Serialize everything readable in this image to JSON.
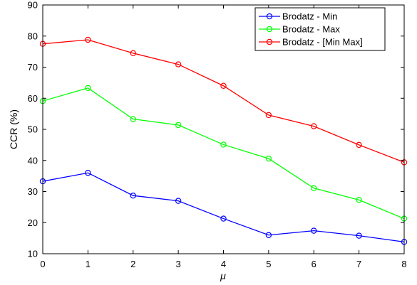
{
  "chart_data": {
    "type": "line",
    "title": "",
    "xlabel": "μ",
    "ylabel": "CCR (%)",
    "xlim": [
      0,
      8
    ],
    "ylim": [
      10,
      90
    ],
    "xticks": [
      0,
      1,
      2,
      3,
      4,
      5,
      6,
      7,
      8
    ],
    "yticks": [
      10,
      20,
      30,
      40,
      50,
      60,
      70,
      80,
      90
    ],
    "grid": false,
    "legend_position": "top-right",
    "x": [
      0,
      1,
      2,
      3,
      4,
      5,
      6,
      7,
      8
    ],
    "series": [
      {
        "name": "Brodatz - Min",
        "color": "#0000ff",
        "marker": "circle",
        "values": [
          33.3,
          36.0,
          28.7,
          27.0,
          21.3,
          16.0,
          17.4,
          15.8,
          13.8
        ]
      },
      {
        "name": "Brodatz - Max",
        "color": "#00ff00",
        "marker": "circle",
        "values": [
          59.1,
          63.3,
          53.3,
          51.4,
          45.1,
          40.6,
          31.1,
          27.3,
          21.3
        ]
      },
      {
        "name": "Brodatz - [Min Max]",
        "color": "#ff0000",
        "marker": "circle",
        "values": [
          77.5,
          78.8,
          74.5,
          70.9,
          64.0,
          54.6,
          51.0,
          45.0,
          39.4
        ]
      }
    ]
  }
}
